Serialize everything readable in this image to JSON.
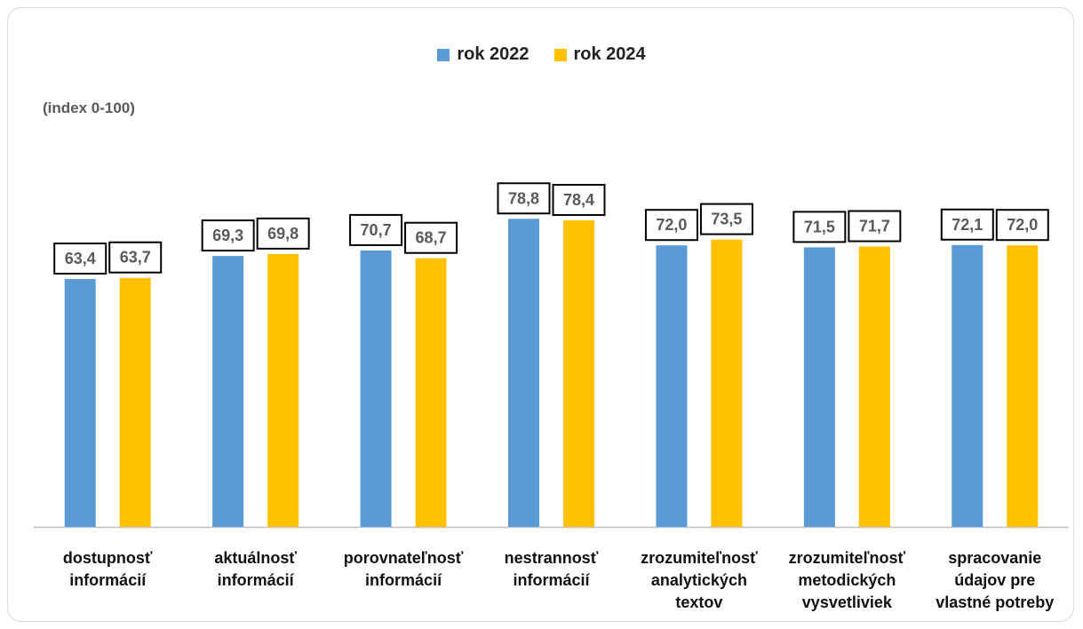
{
  "chart_data": {
    "type": "bar",
    "unit_label": "(index 0-100)",
    "categories": [
      [
        "dostupnosť",
        "informácií"
      ],
      [
        "aktuálnosť",
        "informácií"
      ],
      [
        "porovnateľnosť",
        "informácií"
      ],
      [
        "nestrannosť",
        "informácií"
      ],
      [
        "zrozumiteľnosť",
        "analytických",
        "textov"
      ],
      [
        "zrozumiteľnosť",
        "metodických",
        "vysvetliviek"
      ],
      [
        "spracovanie",
        "údajov pre",
        "vlastné potreby"
      ]
    ],
    "series": [
      {
        "name": "rok 2022",
        "color": "#5b9bd5",
        "values": [
          63.4,
          69.3,
          70.7,
          78.8,
          72.0,
          71.5,
          72.1
        ],
        "labels": [
          "63,4",
          "69,3",
          "70,7",
          "78,8",
          "72,0",
          "71,5",
          "72,1"
        ]
      },
      {
        "name": "rok 2024",
        "color": "#ffc000",
        "values": [
          63.7,
          69.8,
          68.7,
          78.4,
          73.5,
          71.7,
          72.0
        ],
        "labels": [
          "63,7",
          "69,8",
          "68,7",
          "78,4",
          "73,5",
          "71,7",
          "72,0"
        ]
      }
    ],
    "ylim": [
      0,
      100
    ],
    "grid": false,
    "legend_position": "top-center"
  }
}
